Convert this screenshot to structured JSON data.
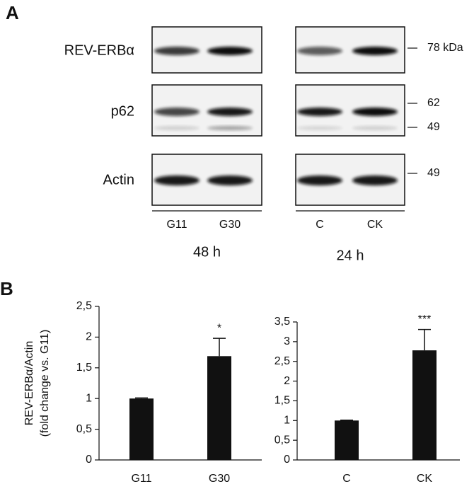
{
  "panel_a": {
    "panel_label": "A",
    "blots": [
      {
        "label": "REV-ERBα"
      },
      {
        "label": "p62"
      },
      {
        "label": "Actin"
      }
    ],
    "markers": [
      "78 kDa",
      "62",
      "49",
      "49"
    ],
    "groups": [
      {
        "lanes": [
          "G11",
          "G30"
        ],
        "time": "48 h"
      },
      {
        "lanes": [
          "C",
          "CK"
        ],
        "time": "24 h"
      }
    ]
  },
  "panel_b_label": "B",
  "chart_data": [
    {
      "type": "bar",
      "ylabel": [
        "REV-ERBα/Actin",
        "(fold change vs. G11)"
      ],
      "categories": [
        "G11",
        "G30"
      ],
      "values": [
        1.0,
        1.69
      ],
      "errors": [
        0.01,
        0.29
      ],
      "annotations": [
        null,
        "*"
      ],
      "color": "#111111",
      "ylim": [
        0,
        2.5
      ],
      "yticks": [
        0,
        {
          "value": 0.5,
          "label": "0,5"
        },
        1,
        {
          "value": 1.5,
          "label": "1,5"
        },
        2,
        {
          "value": 2.5,
          "label": "2,5"
        }
      ]
    },
    {
      "type": "bar",
      "categories": [
        "C",
        "CK"
      ],
      "values": [
        1.0,
        2.78
      ],
      "errors": [
        0.01,
        0.53
      ],
      "annotations": [
        null,
        "***"
      ],
      "color": "#111111",
      "ylim": [
        0,
        3.5
      ],
      "yticks": [
        0,
        {
          "value": 0.5,
          "label": "0,5"
        },
        1,
        {
          "value": 1.5,
          "label": "1,5"
        },
        2,
        {
          "value": 2.5,
          "label": "2,5"
        },
        3,
        {
          "value": 3.5,
          "label": "3,5"
        }
      ]
    }
  ]
}
